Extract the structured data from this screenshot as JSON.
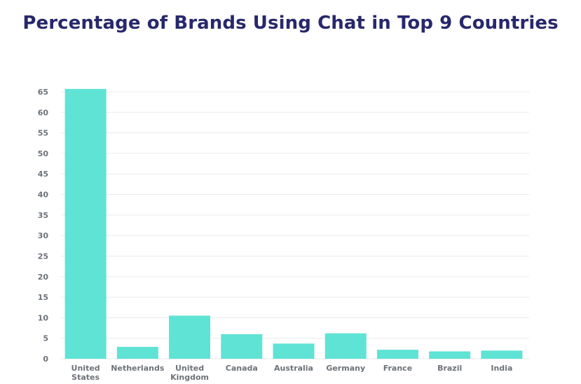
{
  "chart_data": {
    "type": "bar",
    "title": "Percentage of Brands Using Chat in Top 9 Countries",
    "xlabel": "",
    "ylabel": "",
    "categories": [
      "United States",
      "Netherlands",
      "United Kingdom",
      "Canada",
      "Australia",
      "Germany",
      "France",
      "Brazil",
      "India"
    ],
    "values": [
      65.7,
      2.9,
      10.5,
      6.0,
      3.7,
      6.2,
      2.2,
      1.8,
      2.0
    ],
    "ylim": [
      0,
      65
    ],
    "yticks": [
      0,
      5,
      10,
      15,
      20,
      25,
      30,
      35,
      40,
      45,
      50,
      55,
      60,
      65
    ],
    "grid": true,
    "legend": "none",
    "colors": {
      "bar": "#5fe3d5",
      "grid": "#e8eaee",
      "title": "#27286b",
      "tick": "#6d7278"
    }
  }
}
